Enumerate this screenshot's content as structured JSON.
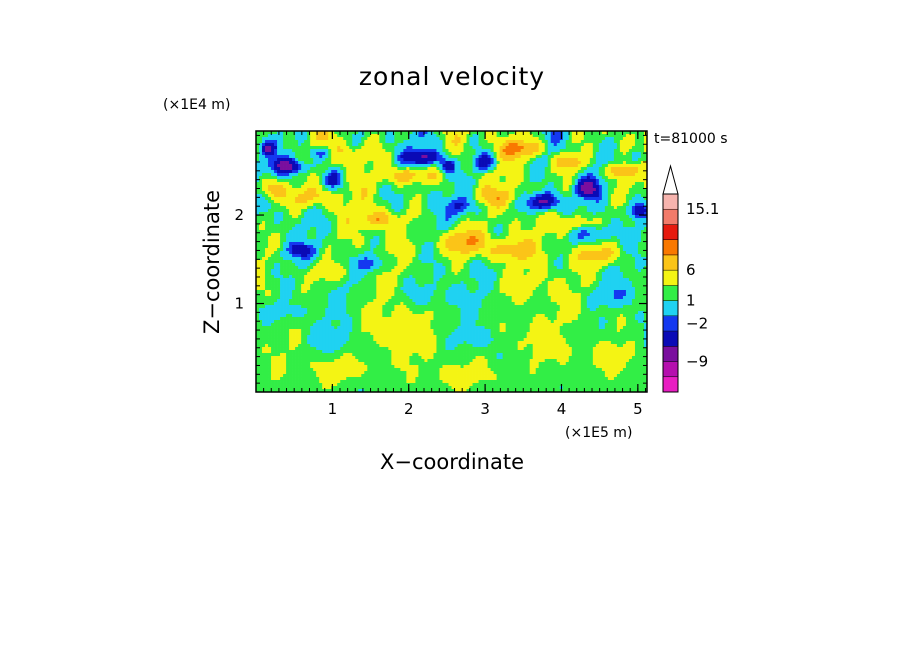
{
  "chart_data": {
    "type": "heatmap",
    "title": "zonal velocity",
    "xlabel": "X−coordinate",
    "ylabel": "Z−coordinate",
    "x_unit": "(×1E5 m)",
    "y_unit": "(×1E4 m)",
    "time_label": "t=81000 s",
    "xlim": [
      0,
      5.12
    ],
    "ylim": [
      0,
      2.95
    ],
    "x_ticks": [
      1,
      2,
      3,
      4,
      5
    ],
    "y_ticks": [
      1,
      2
    ],
    "colorbar": {
      "labeled_levels": [
        "15.1",
        "6",
        "1",
        "−2",
        "−9"
      ],
      "bands": [
        "#e81ec2",
        "#b50fae",
        "#7a0e9e",
        "#0a0ab6",
        "#1438f0",
        "#1fd2f2",
        "#32ee46",
        "#f4f414",
        "#fbc418",
        "#f97800",
        "#e61a0e",
        "#f27b6a",
        "#f6b4ae",
        "#ffffff"
      ],
      "extend": "max"
    },
    "blobs": [
      {
        "x": 0.15,
        "z": 2.75,
        "rx": 0.1,
        "rz": 0.08,
        "v": -4
      },
      {
        "x": 0.45,
        "z": 2.55,
        "rx": 0.25,
        "rz": 0.08,
        "v": -5
      },
      {
        "x": 0.85,
        "z": 2.7,
        "rx": 0.2,
        "rz": 0.08,
        "v": -3
      },
      {
        "x": 1.0,
        "z": 2.4,
        "rx": 0.15,
        "rz": 0.1,
        "v": -3
      },
      {
        "x": 2.2,
        "z": 2.65,
        "rx": 0.22,
        "rz": 0.08,
        "v": -5
      },
      {
        "x": 2.5,
        "z": 2.55,
        "rx": 0.1,
        "rz": 0.08,
        "v": -4
      },
      {
        "x": 3.0,
        "z": 2.6,
        "rx": 0.15,
        "rz": 0.1,
        "v": -4
      },
      {
        "x": 3.75,
        "z": 2.15,
        "rx": 0.22,
        "rz": 0.1,
        "v": -6
      },
      {
        "x": 4.35,
        "z": 2.3,
        "rx": 0.15,
        "rz": 0.1,
        "v": -5
      },
      {
        "x": 5.0,
        "z": 2.05,
        "rx": 0.12,
        "rz": 0.1,
        "v": -4
      },
      {
        "x": 5.0,
        "z": 2.65,
        "rx": 0.12,
        "rz": 0.1,
        "v": -3
      },
      {
        "x": 4.75,
        "z": 2.5,
        "rx": 0.15,
        "rz": 0.08,
        "v": 4
      },
      {
        "x": 4.1,
        "z": 2.6,
        "rx": 0.18,
        "rz": 0.1,
        "v": 4
      },
      {
        "x": 3.5,
        "z": 2.75,
        "rx": 0.25,
        "rz": 0.1,
        "v": 4
      },
      {
        "x": 2.0,
        "z": 2.45,
        "rx": 0.3,
        "rz": 0.1,
        "v": 4
      },
      {
        "x": 0.2,
        "z": 2.3,
        "rx": 0.15,
        "rz": 0.12,
        "v": 4
      },
      {
        "x": 0.7,
        "z": 2.2,
        "rx": 0.3,
        "rz": 0.12,
        "v": 3
      },
      {
        "x": 1.6,
        "z": 1.95,
        "rx": 0.25,
        "rz": 0.1,
        "v": 3
      },
      {
        "x": 2.7,
        "z": 1.7,
        "rx": 0.3,
        "rz": 0.15,
        "v": 4
      },
      {
        "x": 3.3,
        "z": 1.6,
        "rx": 0.3,
        "rz": 0.12,
        "v": 3
      },
      {
        "x": 4.5,
        "z": 1.55,
        "rx": 0.3,
        "rz": 0.12,
        "v": 3
      },
      {
        "x": 4.2,
        "z": 1.9,
        "rx": 0.25,
        "rz": 0.1,
        "v": 3
      },
      {
        "x": 0.6,
        "z": 1.6,
        "rx": 0.2,
        "rz": 0.08,
        "v": -3
      },
      {
        "x": 1.5,
        "z": 1.45,
        "rx": 0.18,
        "rz": 0.1,
        "v": -3
      },
      {
        "x": 0.9,
        "z": 1.35,
        "rx": 0.25,
        "rz": 0.1,
        "v": 2
      },
      {
        "x": 0.3,
        "z": 0.9,
        "rx": 0.3,
        "rz": 0.1,
        "v": -1.5
      },
      {
        "x": 4.7,
        "z": 1.1,
        "rx": 0.3,
        "rz": 0.12,
        "v": -1.5
      },
      {
        "x": 4.1,
        "z": 0.7,
        "rx": 0.3,
        "rz": 0.1,
        "v": -1
      },
      {
        "x": 1.8,
        "z": 0.7,
        "rx": 0.4,
        "rz": 0.3,
        "v": 1.2
      },
      {
        "x": 3.7,
        "z": 0.6,
        "rx": 0.5,
        "rz": 0.25,
        "v": 1.2
      },
      {
        "x": 1.1,
        "z": 0.25,
        "rx": 0.4,
        "rz": 0.15,
        "v": 1.2
      },
      {
        "x": 2.8,
        "z": 0.2,
        "rx": 0.5,
        "rz": 0.12,
        "v": 1.0
      },
      {
        "x": 4.8,
        "z": 0.4,
        "rx": 0.25,
        "rz": 0.15,
        "v": 1.1
      },
      {
        "x": 2.3,
        "z": 1.1,
        "rx": 0.4,
        "rz": 0.15,
        "v": -1.3
      },
      {
        "x": 3.5,
        "z": 1.2,
        "rx": 0.4,
        "rz": 0.15,
        "v": 1.1
      },
      {
        "x": 1.0,
        "z": 0.6,
        "rx": 0.3,
        "rz": 0.12,
        "v": -1.2
      },
      {
        "x": 2.9,
        "z": 0.6,
        "rx": 0.3,
        "rz": 0.12,
        "v": -1.2
      },
      {
        "x": 4.4,
        "z": 1.8,
        "rx": 0.25,
        "rz": 0.1,
        "v": -2.5
      },
      {
        "x": 3.2,
        "z": 2.2,
        "rx": 0.3,
        "rz": 0.1,
        "v": 2
      },
      {
        "x": 1.2,
        "z": 2.7,
        "rx": 0.25,
        "rz": 0.12,
        "v": 2
      },
      {
        "x": 2.7,
        "z": 2.1,
        "rx": 0.2,
        "rz": 0.1,
        "v": -2.5
      }
    ]
  }
}
